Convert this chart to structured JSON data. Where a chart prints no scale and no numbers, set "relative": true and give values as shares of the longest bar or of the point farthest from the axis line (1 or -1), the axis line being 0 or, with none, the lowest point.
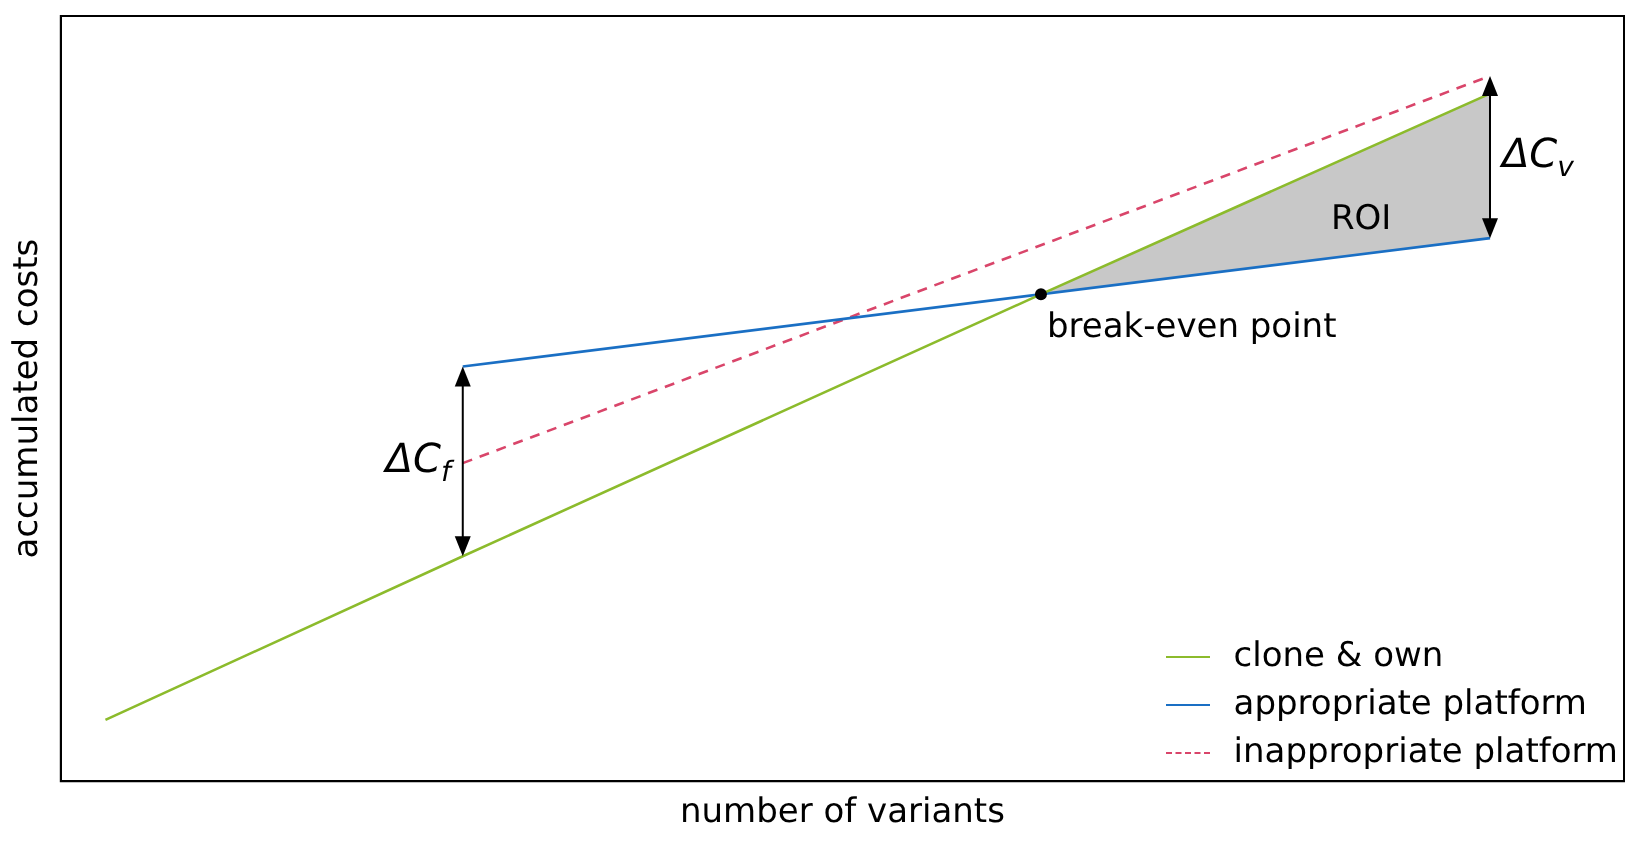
{
  "chart_data": {
    "type": "line",
    "relative": true,
    "xlabel": "number of variants",
    "ylabel": "accumulated costs",
    "legend": "bottom right",
    "grid": false,
    "categories": [
      null,
      null,
      null,
      null,
      null,
      null,
      null,
      null,
      null,
      null,
      null,
      null,
      null,
      null,
      null,
      null,
      null,
      null,
      null,
      null,
      null,
      null,
      null,
      null,
      null,
      null,
      null,
      null,
      null,
      null,
      null,
      null,
      null,
      null,
      null,
      null
    ],
    "series": [
      {
        "name": "clone & own",
        "color": "#8cbb2c",
        "values": [
          null,
          0.087,
          null,
          null,
          null,
          null,
          null,
          null,
          null,
          0.319,
          null,
          null,
          null,
          null,
          null,
          null,
          null,
          null,
          null,
          null,
          null,
          null,
          0.692,
          null,
          null,
          null,
          null,
          null,
          null,
          null,
          null,
          null,
          0.975,
          null,
          null,
          null
        ],
        "lower": [
          null,
          null,
          null,
          null,
          null,
          null,
          null,
          null,
          null,
          null,
          null,
          null,
          null,
          null,
          null,
          null,
          null,
          null,
          null,
          null,
          null,
          null,
          0.692,
          null,
          null,
          null,
          null,
          null,
          null,
          null,
          null,
          null,
          0.77,
          null,
          null,
          null
        ],
        "upper": [
          null,
          null,
          null,
          null,
          null,
          null,
          null,
          null,
          null,
          null,
          null,
          null,
          null,
          null,
          null,
          null,
          null,
          null,
          null,
          null,
          null,
          null,
          0.692,
          null,
          null,
          null,
          null,
          null,
          null,
          null,
          null,
          null,
          0.975,
          null,
          null,
          null
        ],
        "line_style": "solid"
      },
      {
        "name": "appropriate platform",
        "color": "#1a6fc4",
        "values": [
          null,
          null,
          null,
          null,
          null,
          null,
          null,
          null,
          null,
          0.588,
          null,
          null,
          null,
          null,
          null,
          null,
          null,
          null,
          null,
          null,
          null,
          null,
          null,
          null,
          null,
          null,
          null,
          null,
          null,
          null,
          null,
          null,
          0.77,
          null,
          null,
          null
        ],
        "line_style": "solid"
      },
      {
        "name": "inappropriate platform",
        "color": "#d9456a",
        "values": [
          null,
          null,
          null,
          null,
          null,
          null,
          null,
          null,
          null,
          0.451,
          null,
          null,
          null,
          null,
          null,
          null,
          null,
          null,
          null,
          null,
          null,
          null,
          null,
          null,
          null,
          null,
          null,
          null,
          null,
          null,
          null,
          null,
          1.0,
          null,
          null,
          null
        ],
        "line_style": "dashed"
      }
    ],
    "annotations": [
      "ΔC$_{f}$",
      "ΔC$_{v}$",
      "ROI",
      "break-even point"
    ]
  }
}
